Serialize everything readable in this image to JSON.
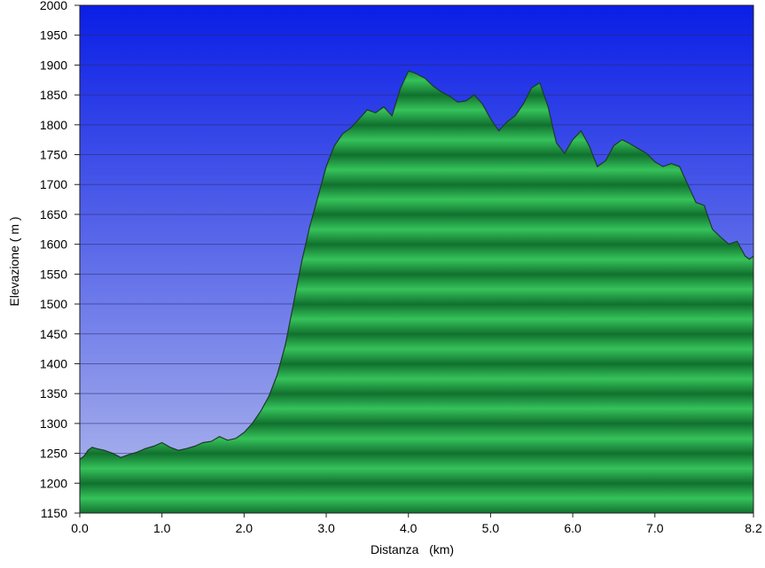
{
  "chart_data": {
    "type": "area",
    "xlabel": "Distanza   (km)",
    "ylabel": "Elevazione ( m )",
    "xlim": [
      0.0,
      8.2
    ],
    "ylim": [
      1150,
      2000
    ],
    "x_ticks": [
      0.0,
      1.0,
      2.0,
      3.0,
      4.0,
      5.0,
      6.0,
      7.0,
      8.2
    ],
    "x_tick_labels": [
      "0.0",
      "1.0",
      "2.0",
      "3.0",
      "4.0",
      "5.0",
      "6.0",
      "7.0",
      "8.2"
    ],
    "y_ticks": [
      1150,
      1200,
      1250,
      1300,
      1350,
      1400,
      1450,
      1500,
      1550,
      1600,
      1650,
      1700,
      1750,
      1800,
      1850,
      1900,
      1950,
      2000
    ],
    "y_tick_labels": [
      "1150",
      "1200",
      "1250",
      "1300",
      "1350",
      "1400",
      "1450",
      "1500",
      "1550",
      "1600",
      "1650",
      "1700",
      "1750",
      "1800",
      "1850",
      "1900",
      "1950",
      "2000"
    ],
    "grid": true,
    "colors": {
      "sky_top": "#0a1ee6",
      "sky_bottom": "#b4bcec",
      "fill_light": "#36c25a",
      "fill_dark": "#10702e",
      "line": "#1f3a28"
    },
    "x": [
      0.0,
      0.05,
      0.1,
      0.15,
      0.2,
      0.3,
      0.4,
      0.5,
      0.6,
      0.7,
      0.8,
      0.9,
      1.0,
      1.1,
      1.2,
      1.3,
      1.4,
      1.5,
      1.6,
      1.7,
      1.8,
      1.9,
      2.0,
      2.1,
      2.2,
      2.3,
      2.4,
      2.5,
      2.6,
      2.7,
      2.8,
      2.9,
      3.0,
      3.05,
      3.1,
      3.2,
      3.3,
      3.4,
      3.5,
      3.6,
      3.7,
      3.8,
      3.9,
      4.0,
      4.05,
      4.1,
      4.2,
      4.3,
      4.4,
      4.5,
      4.6,
      4.7,
      4.8,
      4.9,
      5.0,
      5.1,
      5.2,
      5.3,
      5.4,
      5.5,
      5.6,
      5.7,
      5.8,
      5.9,
      6.0,
      6.1,
      6.2,
      6.3,
      6.4,
      6.5,
      6.6,
      6.7,
      6.8,
      6.9,
      7.0,
      7.1,
      7.2,
      7.3,
      7.4,
      7.5,
      7.6,
      7.7,
      7.8,
      7.9,
      8.0,
      8.1,
      8.15,
      8.2
    ],
    "values": [
      1240,
      1245,
      1255,
      1260,
      1258,
      1255,
      1250,
      1243,
      1248,
      1252,
      1258,
      1262,
      1268,
      1260,
      1255,
      1258,
      1262,
      1268,
      1270,
      1278,
      1272,
      1275,
      1285,
      1300,
      1320,
      1345,
      1380,
      1430,
      1500,
      1570,
      1630,
      1680,
      1730,
      1748,
      1765,
      1785,
      1795,
      1810,
      1825,
      1820,
      1830,
      1815,
      1860,
      1890,
      1888,
      1885,
      1878,
      1865,
      1855,
      1848,
      1838,
      1840,
      1850,
      1835,
      1810,
      1790,
      1805,
      1815,
      1835,
      1862,
      1870,
      1830,
      1770,
      1752,
      1775,
      1790,
      1765,
      1730,
      1740,
      1765,
      1775,
      1768,
      1760,
      1752,
      1738,
      1730,
      1735,
      1730,
      1700,
      1670,
      1665,
      1625,
      1612,
      1600,
      1605,
      1580,
      1575,
      1580
    ]
  }
}
